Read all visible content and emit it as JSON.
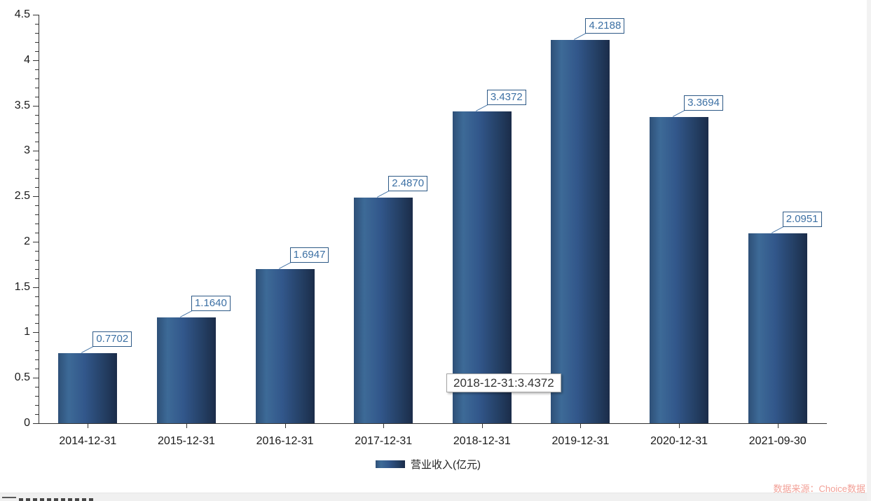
{
  "chart_data": {
    "type": "bar",
    "title": "",
    "categories": [
      "2014-12-31",
      "2015-12-31",
      "2016-12-31",
      "2017-12-31",
      "2018-12-31",
      "2019-12-31",
      "2020-12-31",
      "2021-09-30"
    ],
    "values": [
      0.7702,
      1.164,
      1.6947,
      2.487,
      3.4372,
      4.2188,
      3.3694,
      2.0951
    ],
    "value_labels": [
      "0.7702",
      "1.1640",
      "1.6947",
      "2.4870",
      "3.4372",
      "4.2188",
      "3.3694",
      "2.0951"
    ],
    "series_name": "营业收入(亿元)",
    "xlabel": "",
    "ylabel": "",
    "ylim": [
      0,
      4.5
    ],
    "y_tick_step": 0.5,
    "y_minor_tick_step": 0.1,
    "y_tick_labels": [
      "0",
      "0.5",
      "1",
      "1.5",
      "2",
      "2.5",
      "3",
      "3.5",
      "4",
      "4.5"
    ],
    "grid": false,
    "legend_position": "bottom",
    "bar_gradient": [
      "#2e5078",
      "#3d6a97",
      "#1b2c49"
    ],
    "axis_color": "#333333",
    "value_label_color": "#3c70a4"
  },
  "tooltip": {
    "text": "2018-12-31:3.4372"
  },
  "legend": {
    "label": "营业收入(亿元)"
  },
  "footer": {
    "source": "数据来源：Choice数据",
    "source_color": "#f2a097"
  }
}
